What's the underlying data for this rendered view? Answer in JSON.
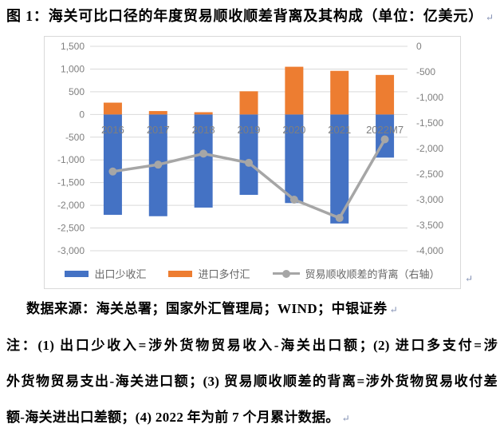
{
  "title": "图 1：海关可比口径的年度贸易顺收顺差背离及其构成（单位：亿美元）",
  "marks": {
    "return_mark": "↵"
  },
  "chart_data": {
    "type": "bar",
    "subtype": "stacked-bars-with-line",
    "categories": [
      "2016",
      "2017",
      "2018",
      "2019",
      "2020",
      "2021",
      "2022M7"
    ],
    "series": [
      {
        "name": "出口少收汇",
        "type": "bar",
        "axis": "left",
        "color": "#4472C4",
        "values": [
          -2210,
          -2240,
          -2050,
          -1770,
          -1950,
          -2400,
          -950
        ]
      },
      {
        "name": "进口多付汇",
        "type": "bar",
        "axis": "left",
        "color": "#ED7D31",
        "values": [
          260,
          75,
          50,
          510,
          1050,
          960,
          870
        ]
      },
      {
        "name": "贸易顺收顺差的背离（右轴）",
        "type": "line",
        "axis": "right",
        "color": "#A6A6A6",
        "values": [
          -2450,
          -2315,
          -2100,
          -2280,
          -3000,
          -3360,
          -1820
        ]
      }
    ],
    "left_axis": {
      "max": 1500,
      "min": -3000,
      "step": 500,
      "ticks": [
        1500,
        1000,
        500,
        0,
        -500,
        -1000,
        -1500,
        -2000,
        -2500,
        -3000
      ]
    },
    "right_axis": {
      "max": 0,
      "min": -4000,
      "step": 500,
      "ticks": [
        0,
        -500,
        -1000,
        -1500,
        -2000,
        -2500,
        -3000,
        -3500,
        -4000
      ]
    },
    "grid": true,
    "grid_color": "#D9D9D9",
    "tick_color": "#7F7F7F",
    "legend_position": "bottom"
  },
  "source": "数据来源：海关总署；国家外汇管理局；WIND；中银证券",
  "notes": [
    "注：(1) 出口少收入=涉外货物贸易收入-海关出口额；(2) 进口多支付=涉",
    "外货物贸易支出-海关进口额；(3) 贸易顺收顺差的背离=涉外货物贸易收付差",
    "额-海关进出口差额；(4) 2022 年为前 7 个月累计数据。"
  ]
}
